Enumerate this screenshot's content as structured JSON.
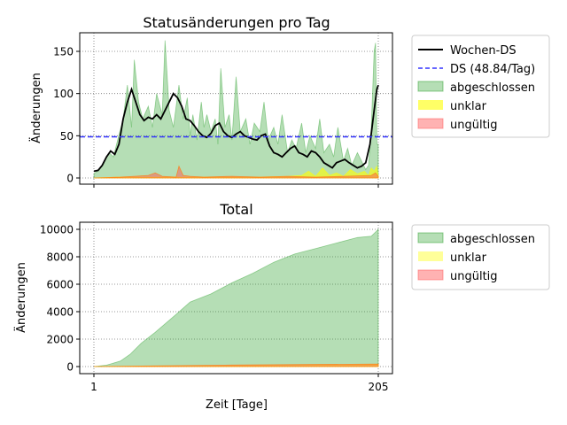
{
  "chart_data": [
    {
      "type": "area",
      "title": "Statusänderungen pro Tag",
      "xlabel": "",
      "ylabel": "Änderungen",
      "xlim": [
        1,
        205
      ],
      "ylim": [
        0,
        170
      ],
      "xticks": [
        1,
        205
      ],
      "yticks": [
        0,
        50,
        100,
        150
      ],
      "grid": true,
      "legend_position": "outside-right",
      "legend": [
        {
          "label": "Wochen-DS",
          "kind": "line",
          "color": "#000000"
        },
        {
          "label": "DS (48.84/Tag)",
          "kind": "dashed-line",
          "color": "#3333ff"
        },
        {
          "label": "abgeschlossen",
          "kind": "area",
          "color": "#2ca02c"
        },
        {
          "label": "unklar",
          "kind": "area",
          "color": "#ffff00"
        },
        {
          "label": "ungültig",
          "kind": "area",
          "color": "#ff5555"
        }
      ],
      "mean_line": 48.84,
      "series": [
        {
          "name": "abgeschlossen",
          "color": "#2ca02c",
          "x": [
            1,
            5,
            8,
            12,
            15,
            18,
            22,
            25,
            28,
            30,
            33,
            36,
            40,
            43,
            46,
            50,
            52,
            55,
            58,
            62,
            65,
            68,
            70,
            72,
            75,
            78,
            80,
            82,
            85,
            88,
            90,
            92,
            95,
            98,
            100,
            103,
            106,
            110,
            113,
            116,
            120,
            123,
            126,
            130,
            133,
            136,
            140,
            143,
            146,
            150,
            153,
            156,
            160,
            163,
            166,
            170,
            173,
            176,
            180,
            183,
            186,
            190,
            193,
            196,
            198,
            200,
            202,
            203,
            204,
            205
          ],
          "values": [
            5,
            10,
            18,
            30,
            25,
            45,
            70,
            110,
            60,
            140,
            90,
            70,
            85,
            60,
            100,
            75,
            163,
            80,
            60,
            110,
            70,
            95,
            50,
            75,
            45,
            90,
            60,
            75,
            55,
            70,
            40,
            130,
            60,
            75,
            45,
            120,
            55,
            70,
            40,
            65,
            55,
            90,
            45,
            60,
            40,
            75,
            30,
            45,
            35,
            65,
            30,
            50,
            35,
            70,
            30,
            40,
            25,
            60,
            20,
            35,
            15,
            30,
            20,
            10,
            15,
            60,
            150,
            160,
            40,
            40
          ]
        },
        {
          "name": "unklar",
          "color": "#ffff00",
          "x": [
            1,
            20,
            40,
            60,
            80,
            100,
            120,
            140,
            150,
            155,
            160,
            165,
            170,
            175,
            180,
            185,
            190,
            195,
            198,
            200,
            202,
            204,
            205
          ],
          "values": [
            0,
            1,
            1,
            1,
            1,
            1,
            1,
            2,
            3,
            8,
            2,
            12,
            3,
            6,
            2,
            10,
            5,
            8,
            3,
            12,
            8,
            14,
            2
          ]
        },
        {
          "name": "ungültig",
          "color": "#ff5555",
          "x": [
            1,
            20,
            30,
            40,
            45,
            50,
            60,
            62,
            65,
            70,
            80,
            100,
            120,
            140,
            160,
            180,
            200,
            203,
            205
          ],
          "values": [
            0,
            1,
            2,
            3,
            6,
            2,
            1,
            14,
            3,
            2,
            1,
            2,
            1,
            2,
            1,
            2,
            3,
            6,
            2
          ]
        },
        {
          "name": "Wochen-DS",
          "color": "#000000",
          "x": [
            1,
            4,
            7,
            10,
            13,
            16,
            19,
            22,
            25,
            28,
            31,
            34,
            37,
            40,
            43,
            46,
            49,
            52,
            55,
            58,
            61,
            64,
            67,
            70,
            73,
            76,
            79,
            82,
            85,
            88,
            91,
            94,
            97,
            100,
            103,
            106,
            109,
            112,
            115,
            118,
            121,
            124,
            127,
            130,
            133,
            136,
            139,
            142,
            145,
            148,
            151,
            154,
            157,
            160,
            163,
            166,
            169,
            172,
            175,
            178,
            181,
            184,
            187,
            190,
            193,
            196,
            199,
            202,
            204,
            205
          ],
          "values": [
            8,
            9,
            15,
            25,
            32,
            28,
            40,
            70,
            90,
            105,
            90,
            75,
            68,
            72,
            70,
            75,
            70,
            80,
            90,
            100,
            95,
            85,
            70,
            68,
            62,
            55,
            50,
            48,
            53,
            62,
            65,
            55,
            50,
            48,
            52,
            55,
            50,
            48,
            46,
            45,
            50,
            52,
            38,
            30,
            28,
            25,
            30,
            35,
            38,
            30,
            28,
            25,
            32,
            30,
            25,
            18,
            15,
            12,
            18,
            20,
            22,
            18,
            15,
            12,
            14,
            18,
            40,
            80,
            105,
            110
          ]
        }
      ]
    },
    {
      "type": "area",
      "title": "Total",
      "xlabel": "Zeit [Tage]",
      "ylabel": "Änderungen",
      "xlim": [
        1,
        205
      ],
      "ylim": [
        0,
        10000
      ],
      "xticks": [
        1,
        205
      ],
      "yticks": [
        0,
        2000,
        4000,
        6000,
        8000,
        10000
      ],
      "grid": true,
      "legend_position": "outside-right",
      "legend": [
        {
          "label": "abgeschlossen",
          "kind": "area",
          "color": "#2ca02c"
        },
        {
          "label": "unklar",
          "kind": "area",
          "color": "#ffff00"
        },
        {
          "label": "ungültig",
          "kind": "area",
          "color": "#ff5555"
        }
      ],
      "series": [
        {
          "name": "abgeschlossen",
          "color": "#2ca02c",
          "x": [
            1,
            10,
            20,
            27,
            35,
            45,
            60,
            70,
            85,
            100,
            115,
            130,
            145,
            160,
            175,
            190,
            200,
            204,
            205
          ],
          "values": [
            0,
            100,
            400,
            900,
            1700,
            2500,
            3800,
            4700,
            5300,
            6100,
            6800,
            7600,
            8200,
            8600,
            9000,
            9400,
            9500,
            9900,
            10000
          ]
        },
        {
          "name": "unklar",
          "color": "#ffff00",
          "x": [
            1,
            100,
            150,
            205
          ],
          "values": [
            0,
            50,
            90,
            150
          ]
        },
        {
          "name": "ungültig",
          "color": "#ff5555",
          "x": [
            1,
            50,
            100,
            150,
            205
          ],
          "values": [
            0,
            60,
            110,
            150,
            180
          ]
        }
      ]
    }
  ]
}
